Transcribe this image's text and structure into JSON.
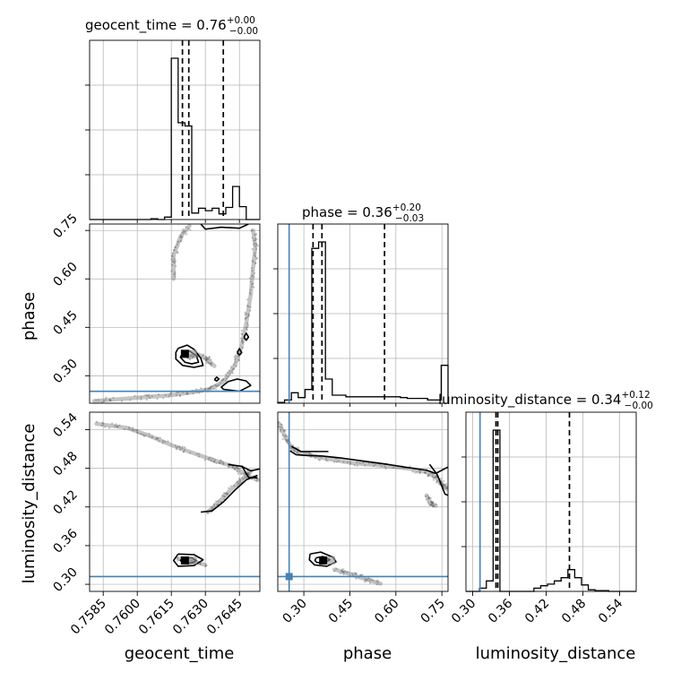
{
  "colors": {
    "truth": "#4682b4",
    "hist": "#000000",
    "grid": "#b0b0b0",
    "samples": "#555555"
  },
  "params": [
    "geocent_time",
    "phase",
    "luminosity_distance"
  ],
  "truths": {
    "geocent_time": null,
    "phase": 0.252,
    "luminosity_distance": 0.312
  },
  "titles": {
    "geocent_time": {
      "text": "geocent_time = 0.76",
      "sup": "+0.00",
      "sub": "−0.00"
    },
    "phase": {
      "text": "phase = 0.36",
      "sup": "+0.20",
      "sub": "−0.03"
    },
    "luminosity_distance": {
      "text": "luminosity_distance = 0.34",
      "sup": "+0.12",
      "sub": "−0.00"
    }
  },
  "axis_labels": {
    "geocent_time": "geocent_time",
    "phase": "phase",
    "luminosity_distance": "luminosity_distance"
  },
  "chart_data": [
    {
      "type": "histogram",
      "param": "geocent_time",
      "xlim": [
        0.7579,
        0.7654
      ],
      "xticks": [
        "0.7585",
        "0.7600",
        "0.7615",
        "0.7630",
        "0.7645"
      ],
      "bin_edges": [
        0.7579,
        0.7582,
        0.7585,
        0.7588,
        0.7591,
        0.7594,
        0.7597,
        0.76,
        0.7603,
        0.7606,
        0.7609,
        0.7612,
        0.7615,
        0.7618,
        0.7621,
        0.7624,
        0.7627,
        0.763,
        0.7633,
        0.7636,
        0.7639,
        0.7642,
        0.7645,
        0.7648,
        0.7651,
        0.7654
      ],
      "counts": [
        0,
        0,
        0,
        0,
        0,
        0,
        0,
        0,
        0,
        0.005,
        0,
        0.015,
        1.0,
        0.6,
        0.58,
        0.04,
        0.07,
        0.055,
        0.07,
        0.035,
        0.075,
        0.205,
        0.08,
        0,
        0
      ],
      "quantiles": [
        0.76199,
        0.76227,
        0.76379
      ]
    },
    {
      "type": "histogram",
      "param": "phase",
      "xlim": [
        0.215,
        0.77
      ],
      "xticks": [
        "0.30",
        "0.45",
        "0.60",
        "0.75"
      ],
      "truth": 0.252,
      "bin_edges": [
        0.215,
        0.2372,
        0.2594,
        0.2816,
        0.3038,
        0.326,
        0.3482,
        0.3704,
        0.3926,
        0.4148,
        0.437,
        0.4592,
        0.4814,
        0.5036,
        0.5258,
        0.548,
        0.5702,
        0.5924,
        0.6146,
        0.6368,
        0.659,
        0.6812,
        0.7034,
        0.7256,
        0.7478,
        0.77
      ],
      "counts": [
        0.005,
        0.02,
        0.065,
        0.035,
        0.085,
        0.96,
        1.0,
        0.15,
        0.05,
        0.05,
        0.04,
        0.04,
        0.04,
        0.04,
        0.04,
        0.04,
        0.04,
        0.04,
        0.035,
        0.03,
        0.03,
        0.03,
        0.02,
        0.02,
        0.235
      ],
      "quantiles": [
        0.33,
        0.359,
        0.563
      ]
    },
    {
      "type": "histogram",
      "param": "luminosity_distance",
      "xlim": [
        0.289,
        0.567
      ],
      "xticks": [
        "0.30",
        "0.36",
        "0.42",
        "0.48",
        "0.54"
      ],
      "truth": 0.312,
      "bin_edges": [
        0.289,
        0.3001,
        0.3112,
        0.3223,
        0.3334,
        0.3445,
        0.3556,
        0.3667,
        0.3778,
        0.3889,
        0.4,
        0.4111,
        0.4222,
        0.4333,
        0.4444,
        0.4555,
        0.4666,
        0.4777,
        0.4888,
        0.4999,
        0.511,
        0.5221,
        0.5332,
        0.5443,
        0.5554,
        0.567
      ],
      "counts": [
        0,
        0,
        0.02,
        0.065,
        1.0,
        0,
        0,
        0,
        0,
        0,
        0.02,
        0.035,
        0.045,
        0.065,
        0.085,
        0.135,
        0.085,
        0.04,
        0.01,
        0.005,
        0.005,
        0,
        0,
        0,
        0
      ],
      "quantiles": [
        0.338,
        0.341,
        0.458
      ]
    },
    {
      "type": "scatter-contour",
      "x": "geocent_time",
      "y": "phase",
      "ylim": [
        0.215,
        0.77
      ],
      "yticks": [
        "0.30",
        "0.45",
        "0.60",
        "0.75"
      ],
      "truth_y": 0.252,
      "sample_tracks": [
        [
          [
            0.7581,
            0.222
          ],
          [
            0.76,
            0.232
          ],
          [
            0.7615,
            0.24
          ],
          [
            0.7625,
            0.25
          ],
          [
            0.7632,
            0.259
          ],
          [
            0.7638,
            0.282
          ],
          [
            0.7643,
            0.332
          ],
          [
            0.7646,
            0.392
          ],
          [
            0.7648,
            0.462
          ],
          [
            0.765,
            0.552
          ],
          [
            0.7651,
            0.632
          ],
          [
            0.7652,
            0.7
          ],
          [
            0.7651,
            0.75
          ]
        ],
        [
          [
            0.7623,
            0.356
          ],
          [
            0.7627,
            0.366
          ],
          [
            0.7631,
            0.35
          ],
          [
            0.7634,
            0.33
          ]
        ],
        [
          [
            0.7616,
            0.6
          ],
          [
            0.7616,
            0.672
          ],
          [
            0.7619,
            0.73
          ],
          [
            0.7623,
            0.764
          ]
        ]
      ],
      "contours": [
        [
          [
            0.7618,
            0.385
          ],
          [
            0.7622,
            0.395
          ],
          [
            0.7625,
            0.382
          ],
          [
            0.7628,
            0.354
          ],
          [
            0.7629,
            0.332
          ],
          [
            0.7625,
            0.326
          ],
          [
            0.762,
            0.332
          ],
          [
            0.7617,
            0.352
          ],
          [
            0.7617,
            0.372
          ],
          [
            0.7618,
            0.385
          ]
        ],
        [
          [
            0.762,
            0.372
          ],
          [
            0.7623,
            0.377
          ],
          [
            0.7626,
            0.362
          ],
          [
            0.7627,
            0.342
          ],
          [
            0.7624,
            0.337
          ],
          [
            0.7621,
            0.342
          ],
          [
            0.7619,
            0.357
          ],
          [
            0.762,
            0.372
          ]
        ],
        [
          [
            0.7628,
            0.77
          ],
          [
            0.763,
            0.754
          ],
          [
            0.7637,
            0.76
          ],
          [
            0.7645,
            0.757
          ],
          [
            0.7649,
            0.77
          ]
        ],
        [
          [
            0.7645,
            0.252
          ],
          [
            0.765,
            0.27
          ],
          [
            0.7648,
            0.284
          ],
          [
            0.7644,
            0.29
          ],
          [
            0.764,
            0.282
          ],
          [
            0.7637,
            0.265
          ],
          [
            0.7638,
            0.258
          ],
          [
            0.7645,
            0.252
          ]
        ],
        [
          [
            0.7647,
            0.42
          ],
          [
            0.7648,
            0.432
          ],
          [
            0.7649,
            0.42
          ],
          [
            0.7648,
            0.41
          ],
          [
            0.7647,
            0.42
          ]
        ],
        [
          [
            0.7644,
            0.372
          ],
          [
            0.7645,
            0.384
          ],
          [
            0.7646,
            0.372
          ],
          [
            0.7645,
            0.364
          ],
          [
            0.7644,
            0.372
          ]
        ],
        [
          [
            0.7634,
            0.288
          ],
          [
            0.7635,
            0.296
          ],
          [
            0.7636,
            0.29
          ],
          [
            0.7635,
            0.284
          ],
          [
            0.7634,
            0.288
          ]
        ]
      ],
      "blocks": [
        [
          0.7621,
          0.368
        ]
      ]
    },
    {
      "type": "scatter-contour",
      "x": "geocent_time",
      "y": "luminosity_distance",
      "ylim": [
        0.289,
        0.567
      ],
      "yticks": [
        "0.30",
        "0.36",
        "0.42",
        "0.48",
        "0.54"
      ],
      "truth_y": 0.312,
      "sample_tracks": [
        [
          [
            0.7582,
            0.549
          ],
          [
            0.7595,
            0.543
          ],
          [
            0.7605,
            0.531
          ],
          [
            0.7615,
            0.516
          ],
          [
            0.7625,
            0.503
          ],
          [
            0.7635,
            0.491
          ],
          [
            0.7642,
            0.483
          ],
          [
            0.7648,
            0.47
          ],
          [
            0.7653,
            0.462
          ]
        ],
        [
          [
            0.7631,
            0.412
          ],
          [
            0.7636,
            0.428
          ],
          [
            0.7641,
            0.446
          ],
          [
            0.7646,
            0.462
          ],
          [
            0.765,
            0.475
          ]
        ],
        [
          [
            0.7618,
            0.34
          ],
          [
            0.7624,
            0.336
          ],
          [
            0.763,
            0.33
          ]
        ]
      ],
      "contours": [
        [
          [
            0.7618,
            0.347
          ],
          [
            0.7625,
            0.346
          ],
          [
            0.7629,
            0.338
          ],
          [
            0.7625,
            0.329
          ],
          [
            0.7618,
            0.328
          ],
          [
            0.7616,
            0.337
          ],
          [
            0.7618,
            0.347
          ]
        ],
        [
          [
            0.762,
            0.341
          ],
          [
            0.7624,
            0.341
          ],
          [
            0.7626,
            0.337
          ],
          [
            0.7624,
            0.333
          ],
          [
            0.762,
            0.333
          ],
          [
            0.7619,
            0.337
          ],
          [
            0.762,
            0.341
          ]
        ],
        [
          [
            0.7628,
            0.412
          ],
          [
            0.7633,
            0.414
          ],
          [
            0.7638,
            0.428
          ],
          [
            0.7643,
            0.446
          ],
          [
            0.7648,
            0.462
          ],
          [
            0.7653,
            0.469
          ]
        ],
        [
          [
            0.764,
            0.486
          ],
          [
            0.7646,
            0.483
          ],
          [
            0.765,
            0.476
          ],
          [
            0.7654,
            0.479
          ]
        ],
        [
          [
            0.7646,
            0.484
          ],
          [
            0.7649,
            0.466
          ],
          [
            0.7653,
            0.465
          ]
        ]
      ],
      "blocks": [
        [
          0.7621,
          0.337
        ]
      ]
    },
    {
      "type": "scatter-contour",
      "x": "phase",
      "y": "luminosity_distance",
      "truth_x": 0.252,
      "truth_y": 0.312,
      "sample_tracks": [
        [
          [
            0.218,
            0.55
          ],
          [
            0.24,
            0.528
          ],
          [
            0.262,
            0.511
          ],
          [
            0.29,
            0.504
          ],
          [
            0.36,
            0.496
          ],
          [
            0.46,
            0.488
          ],
          [
            0.56,
            0.484
          ],
          [
            0.65,
            0.479
          ],
          [
            0.7,
            0.474
          ],
          [
            0.73,
            0.466
          ],
          [
            0.745,
            0.458
          ],
          [
            0.755,
            0.452
          ],
          [
            0.765,
            0.448
          ]
        ],
        [
          [
            0.7,
            0.438
          ],
          [
            0.715,
            0.425
          ],
          [
            0.73,
            0.422
          ]
        ],
        [
          [
            0.4,
            0.323
          ],
          [
            0.45,
            0.316
          ],
          [
            0.5,
            0.308
          ],
          [
            0.55,
            0.301
          ]
        ]
      ],
      "contours": [
        [
          [
            0.255,
            0.507
          ],
          [
            0.275,
            0.501
          ],
          [
            0.3,
            0.5
          ],
          [
            0.36,
            0.499
          ],
          [
            0.42,
            0.496
          ],
          [
            0.48,
            0.492
          ],
          [
            0.56,
            0.487
          ],
          [
            0.64,
            0.481
          ],
          [
            0.7,
            0.477
          ],
          [
            0.73,
            0.472
          ],
          [
            0.75,
            0.477
          ],
          [
            0.77,
            0.482
          ]
        ],
        [
          [
            0.71,
            0.486
          ],
          [
            0.735,
            0.47
          ],
          [
            0.75,
            0.452
          ],
          [
            0.76,
            0.44
          ],
          [
            0.77,
            0.438
          ]
        ],
        [
          [
            0.26,
            0.514
          ],
          [
            0.29,
            0.506
          ],
          [
            0.33,
            0.506
          ],
          [
            0.38,
            0.506
          ]
        ],
        [
          [
            0.32,
            0.347
          ],
          [
            0.355,
            0.35
          ],
          [
            0.395,
            0.342
          ],
          [
            0.405,
            0.335
          ],
          [
            0.375,
            0.328
          ],
          [
            0.335,
            0.33
          ],
          [
            0.318,
            0.338
          ],
          [
            0.32,
            0.347
          ]
        ],
        [
          [
            0.34,
            0.341
          ],
          [
            0.362,
            0.343
          ],
          [
            0.385,
            0.338
          ],
          [
            0.366,
            0.333
          ],
          [
            0.342,
            0.334
          ],
          [
            0.336,
            0.337
          ],
          [
            0.34,
            0.341
          ]
        ]
      ],
      "blocks": [
        [
          0.363,
          0.337
        ]
      ]
    }
  ]
}
